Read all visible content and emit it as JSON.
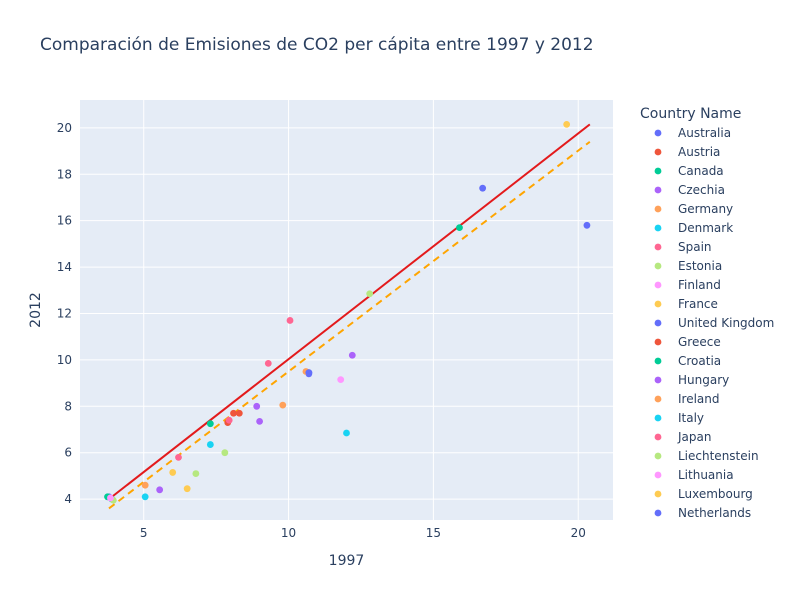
{
  "chart_data": {
    "type": "scatter",
    "title": "Comparación de Emisiones de CO2 per cápita entre 1997 y 2012",
    "xlabel": "1997",
    "ylabel": "2012",
    "xlim": [
      2.8,
      21.2
    ],
    "ylim": [
      3.1,
      21.2
    ],
    "x_ticks": [
      5,
      10,
      15,
      20
    ],
    "y_ticks": [
      4,
      6,
      8,
      10,
      12,
      14,
      16,
      18,
      20
    ],
    "grid": true,
    "legend_title": "Country Name",
    "legend_position": "right",
    "series": [
      {
        "name": "Australia",
        "color": "#636efa",
        "points": [
          [
            16.7,
            17.4
          ],
          [
            10.7,
            9.45
          ],
          [
            3.8,
            4.1
          ],
          [
            20.3,
            15.8
          ]
        ]
      },
      {
        "name": "Austria",
        "color": "#EF553B",
        "points": [
          [
            8.1,
            7.7
          ],
          [
            8.3,
            7.7
          ]
        ]
      },
      {
        "name": "Canada",
        "color": "#00cc96",
        "points": [
          [
            15.9,
            15.7
          ],
          [
            7.3,
            7.25
          ],
          [
            3.75,
            4.1
          ]
        ]
      },
      {
        "name": "Czechia",
        "color": "#ab63fa",
        "points": [
          [
            12.2,
            10.2
          ],
          [
            9.0,
            7.35
          ]
        ]
      },
      {
        "name": "Germany",
        "color": "#FFA15A",
        "points": [
          [
            9.8,
            8.05
          ],
          [
            5.05,
            4.6
          ]
        ]
      },
      {
        "name": "Denmark",
        "color": "#19d3f3",
        "points": [
          [
            12.0,
            6.85
          ]
        ]
      },
      {
        "name": "Spain",
        "color": "#FF6692",
        "points": [
          [
            6.2,
            5.8
          ]
        ]
      },
      {
        "name": "Estonia",
        "color": "#B6E880",
        "points": [
          [
            12.8,
            12.85
          ],
          [
            7.8,
            6.0
          ],
          [
            6.8,
            5.1
          ]
        ]
      },
      {
        "name": "Finland",
        "color": "#FF97FF",
        "points": [
          [
            11.8,
            9.15
          ]
        ]
      },
      {
        "name": "France",
        "color": "#FECB52",
        "points": [
          [
            6.0,
            5.15
          ]
        ]
      },
      {
        "name": "United Kingdom",
        "color": "#636efa",
        "points": [
          [
            10.7,
            9.4
          ]
        ]
      },
      {
        "name": "Greece",
        "color": "#EF553B",
        "points": [
          [
            7.9,
            7.3
          ]
        ]
      },
      {
        "name": "Croatia",
        "color": "#00cc96",
        "points": [
          [
            3.9,
            4.0
          ]
        ]
      },
      {
        "name": "Hungary",
        "color": "#ab63fa",
        "points": [
          [
            5.55,
            4.4
          ],
          [
            8.9,
            8.0
          ]
        ]
      },
      {
        "name": "Ireland",
        "color": "#FFA15A",
        "points": [
          [
            10.6,
            9.5
          ]
        ]
      },
      {
        "name": "Italy",
        "color": "#19d3f3",
        "points": [
          [
            7.3,
            6.35
          ],
          [
            5.05,
            4.1
          ]
        ]
      },
      {
        "name": "Japan",
        "color": "#FF6692",
        "points": [
          [
            10.05,
            11.7
          ],
          [
            9.3,
            9.85
          ],
          [
            7.95,
            7.4
          ]
        ]
      },
      {
        "name": "Liechtenstein",
        "color": "#B6E880",
        "points": [
          [
            3.95,
            3.95
          ]
        ]
      },
      {
        "name": "Lithuania",
        "color": "#FF97FF",
        "points": [
          [
            3.85,
            4.05
          ]
        ]
      },
      {
        "name": "Luxembourg",
        "color": "#FECB52",
        "points": [
          [
            19.6,
            20.15
          ],
          [
            6.5,
            4.45
          ]
        ]
      },
      {
        "name": "Netherlands",
        "color": "#636efa",
        "points": [
          [
            10.7,
            9.45
          ]
        ]
      }
    ],
    "reference_lines": [
      {
        "color": "#e31a1c",
        "dash": "solid",
        "points": [
          [
            3.8,
            4.0
          ],
          [
            20.4,
            20.15
          ]
        ]
      },
      {
        "color": "#FFA500",
        "dash": "dashed",
        "points": [
          [
            3.8,
            3.6
          ],
          [
            20.4,
            19.4
          ]
        ]
      }
    ]
  }
}
